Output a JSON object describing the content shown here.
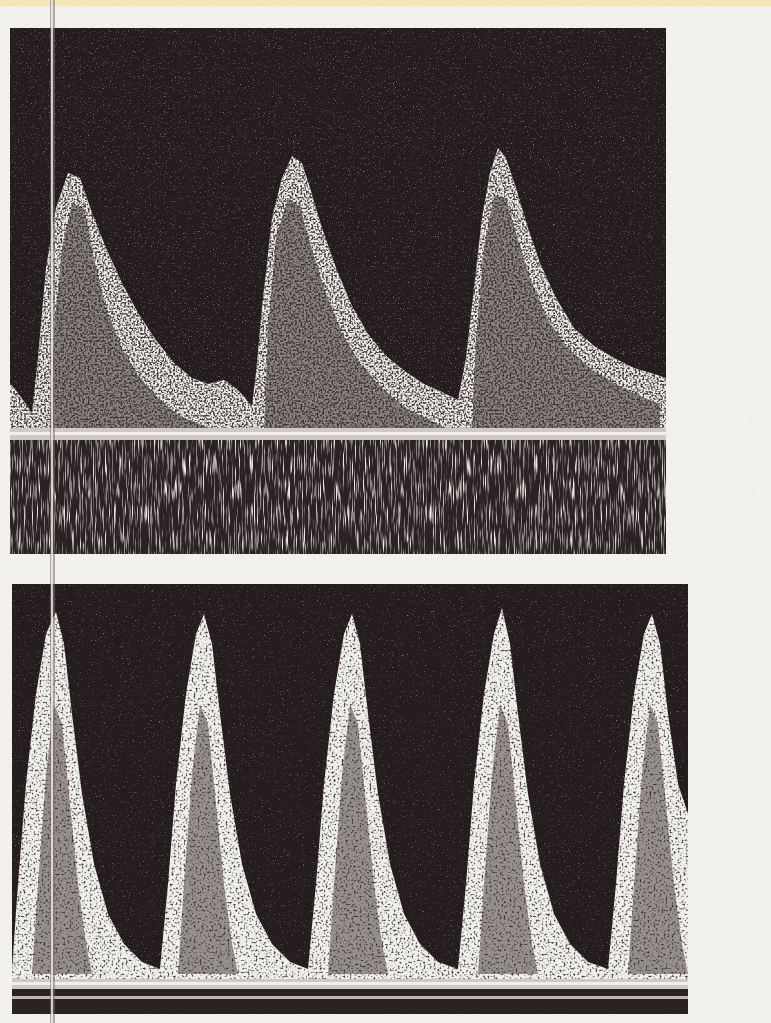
{
  "image": {
    "panels": [
      {
        "name": "top-doppler-waveform",
        "peaks": 3,
        "colors": {
          "background": "#241c1d",
          "signal": "#f2f0ec"
        }
      },
      {
        "name": "bottom-doppler-waveform",
        "peaks": 5,
        "colors": {
          "background": "#241c1d",
          "signal": "#f2f0ec"
        }
      }
    ]
  }
}
